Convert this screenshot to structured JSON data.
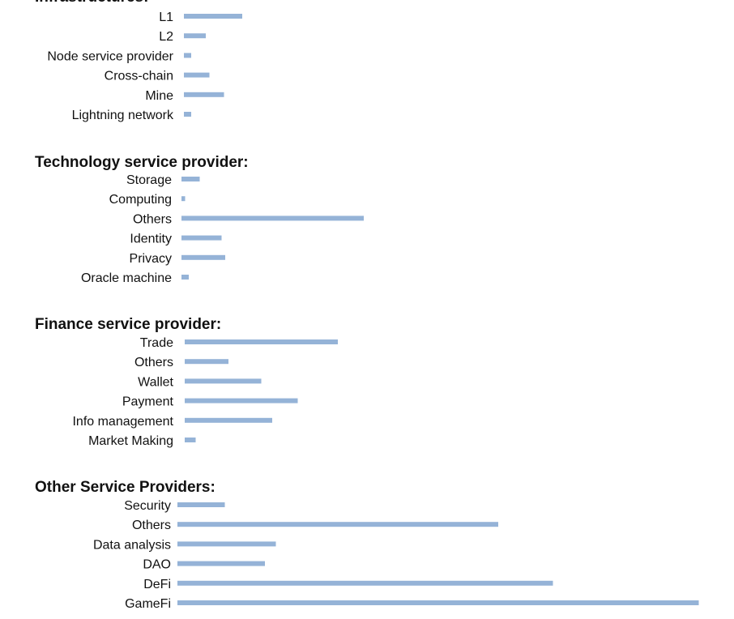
{
  "chart_data": [
    {
      "type": "bar",
      "orientation": "horizontal",
      "title": "Infrastructures:",
      "categories": [
        "L1",
        "L2",
        "Node service provider",
        "Cross-chain",
        "Mine",
        "Lightning network"
      ],
      "values": [
        16,
        6,
        2,
        7,
        11,
        2
      ],
      "bar_color": "#95b3d7"
    },
    {
      "type": "bar",
      "orientation": "horizontal",
      "title": "Technology service provider:",
      "categories": [
        "Storage",
        "Computing",
        "Others",
        "Identity",
        "Privacy",
        "Oracle machine"
      ],
      "values": [
        5,
        1,
        50,
        11,
        12,
        2
      ],
      "bar_color": "#95b3d7"
    },
    {
      "type": "bar",
      "orientation": "horizontal",
      "title": "Finance service provider:",
      "categories": [
        "Trade",
        "Others",
        "Wallet",
        "Payment",
        "Info management",
        "Market Making"
      ],
      "values": [
        42,
        12,
        21,
        31,
        24,
        3
      ],
      "bar_color": "#95b3d7"
    },
    {
      "type": "bar",
      "orientation": "horizontal",
      "title": "Other Service Providers:",
      "categories": [
        "Security",
        "Others",
        "Data analysis",
        "DAO",
        "DeFi",
        "GameFi"
      ],
      "values": [
        13,
        88,
        27,
        24,
        103,
        143
      ],
      "bar_color": "#95b3d7"
    }
  ]
}
